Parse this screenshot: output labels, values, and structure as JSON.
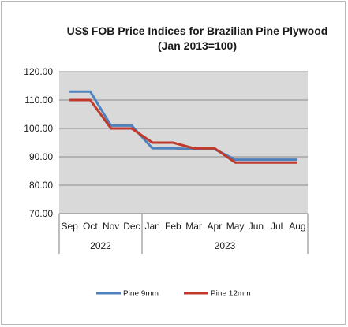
{
  "chart_data": {
    "type": "line",
    "title_line1": "US$ FOB Price Indices for Brazilian Pine Plywood",
    "title_line2": "(Jan 2013=100)",
    "categories": [
      "Sep",
      "Oct",
      "Nov",
      "Dec",
      "Jan",
      "Feb",
      "Mar",
      "Apr",
      "May",
      "Jun",
      "Jul",
      "Aug"
    ],
    "year_groups": [
      {
        "label": "2022",
        "start": 0,
        "end": 3
      },
      {
        "label": "2023",
        "start": 4,
        "end": 11
      }
    ],
    "ylim": [
      70,
      120
    ],
    "yticks": [
      "70.00",
      "80.00",
      "90.00",
      "100.00",
      "110.00",
      "120.00"
    ],
    "grid": true,
    "legend_position": "bottom",
    "series": [
      {
        "name": "Pine 9mm",
        "color": "#4f81bd",
        "values": [
          113,
          113,
          101,
          101,
          93,
          93,
          92.7,
          92.7,
          89,
          89,
          89,
          89
        ]
      },
      {
        "name": "Pine 12mm",
        "color": "#c0392b",
        "values": [
          110,
          110,
          100,
          100,
          95,
          95,
          93,
          93,
          88,
          88,
          88,
          88
        ]
      }
    ]
  }
}
